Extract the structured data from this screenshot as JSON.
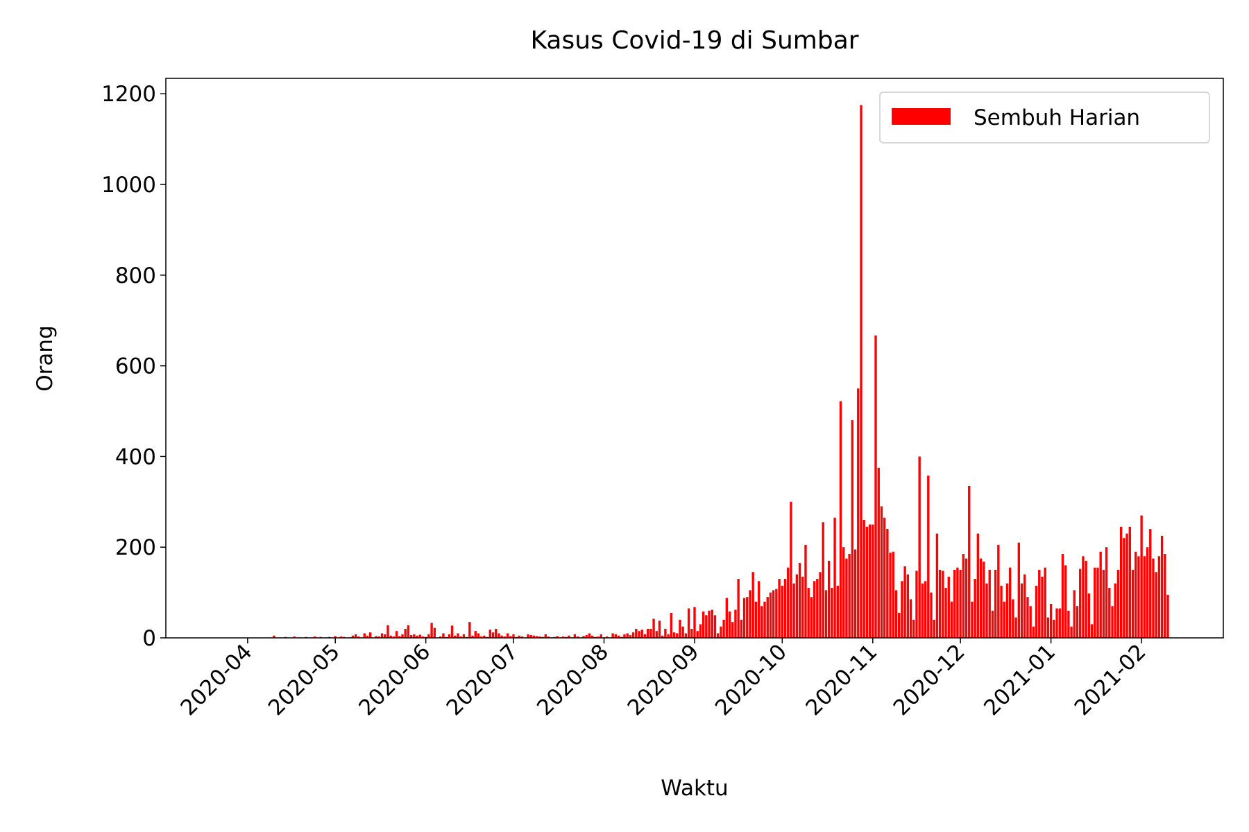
{
  "chart_data": {
    "type": "bar",
    "title": "Kasus Covid-19 di Sumbar",
    "xlabel": "Waktu",
    "ylabel": "Orang",
    "series": [
      {
        "name": "Sembuh Harian",
        "color": "#ff0000",
        "x": [
          40,
          41,
          42,
          43,
          44,
          45,
          46,
          47,
          48,
          49,
          50,
          51,
          52,
          53,
          54,
          55,
          56,
          57,
          58,
          59,
          60,
          61,
          62,
          63,
          64,
          65,
          66,
          67,
          68,
          69,
          70,
          71,
          72,
          73,
          74,
          75,
          76,
          77,
          78,
          79,
          80,
          81,
          82,
          83,
          84,
          85,
          86,
          87,
          88,
          89,
          90,
          91,
          92,
          93,
          94,
          95,
          96,
          97,
          98,
          99,
          100,
          101,
          102,
          103,
          104,
          105,
          106,
          107,
          108,
          109,
          110,
          111,
          112,
          113,
          114,
          115,
          116,
          117,
          118,
          119,
          120,
          121,
          122,
          123,
          124,
          125,
          126,
          127,
          128,
          129,
          130,
          131,
          132,
          133,
          134,
          135,
          136,
          137,
          138,
          139,
          140,
          141,
          142,
          143,
          144,
          145,
          146,
          147,
          148,
          149,
          150,
          151,
          152,
          153,
          154,
          155,
          156,
          157,
          158,
          159,
          160,
          161,
          162,
          163,
          164,
          165,
          166,
          167,
          168,
          169,
          170,
          171,
          172,
          173,
          174,
          175,
          176,
          177,
          178,
          179,
          180,
          181,
          182,
          183,
          184,
          185,
          186,
          187,
          188,
          189,
          190,
          191,
          192,
          193,
          194,
          195,
          196,
          197,
          198,
          199,
          200,
          201,
          202,
          203,
          204,
          205,
          206,
          207,
          208,
          209,
          210,
          211,
          212,
          213,
          214,
          215,
          216,
          217,
          218,
          219,
          220,
          221,
          222,
          223,
          224,
          225,
          226,
          227,
          228,
          229,
          230,
          231,
          232,
          233,
          234,
          235,
          236,
          237,
          238,
          239,
          240,
          241,
          242,
          243,
          244,
          245,
          246,
          247,
          248,
          249,
          250,
          251,
          252,
          253,
          254,
          255,
          256,
          257,
          258,
          259,
          260,
          261,
          262,
          263,
          264,
          265,
          266,
          267,
          268,
          269,
          270,
          271,
          272,
          273,
          274,
          275,
          276,
          277,
          278,
          279,
          280,
          281,
          282,
          283,
          284,
          285,
          286,
          287,
          288,
          289,
          290,
          291,
          292,
          293,
          294,
          295,
          296,
          297,
          298,
          299,
          300,
          301,
          302,
          303,
          304,
          305,
          306,
          307,
          308,
          309,
          310,
          311,
          312,
          313,
          314,
          315,
          316,
          317,
          318,
          319,
          320,
          321,
          322,
          323,
          324,
          325,
          326,
          327,
          328,
          329,
          330,
          331,
          332,
          333,
          334,
          335,
          336,
          337,
          338,
          339,
          340,
          341,
          342,
          343,
          344,
          345,
          346
        ],
        "values": [
          5,
          0,
          1,
          0,
          2,
          0,
          0,
          3,
          0,
          1,
          0,
          2,
          0,
          1,
          3,
          0,
          2,
          0,
          1,
          2,
          0,
          4,
          0,
          3,
          2,
          0,
          1,
          5,
          8,
          3,
          0,
          10,
          5,
          12,
          0,
          4,
          3,
          10,
          8,
          28,
          5,
          3,
          15,
          4,
          8,
          20,
          28,
          6,
          8,
          5,
          7,
          3,
          2,
          8,
          33,
          22,
          0,
          3,
          10,
          2,
          8,
          27,
          5,
          10,
          3,
          8,
          2,
          35,
          5,
          15,
          10,
          3,
          5,
          2,
          18,
          12,
          20,
          10,
          5,
          3,
          10,
          4,
          8,
          2,
          5,
          3,
          0,
          8,
          6,
          5,
          4,
          3,
          2,
          8,
          3,
          1,
          2,
          4,
          1,
          3,
          2,
          5,
          1,
          8,
          3,
          0,
          4,
          6,
          10,
          5,
          2,
          3,
          8,
          1,
          3,
          0,
          10,
          8,
          5,
          2,
          8,
          10,
          6,
          12,
          20,
          15,
          18,
          8,
          20,
          20,
          42,
          15,
          38,
          5,
          20,
          8,
          55,
          12,
          10,
          40,
          25,
          10,
          65,
          20,
          68,
          15,
          30,
          58,
          50,
          60,
          62,
          50,
          10,
          25,
          40,
          88,
          58,
          35,
          62,
          130,
          40,
          88,
          90,
          105,
          145,
          80,
          125,
          70,
          80,
          90,
          100,
          105,
          108,
          130,
          115,
          130,
          155,
          300,
          120,
          140,
          165,
          135,
          205,
          110,
          90,
          125,
          130,
          145,
          255,
          105,
          170,
          110,
          265,
          115,
          522,
          200,
          175,
          185,
          480,
          195,
          550,
          1175,
          260,
          245,
          250,
          250,
          667,
          375,
          290,
          265,
          240,
          188,
          190,
          105,
          55,
          125,
          158,
          140,
          85,
          40,
          148,
          400,
          120,
          125,
          358,
          100,
          40,
          230,
          150,
          148,
          110,
          135,
          80,
          150,
          155,
          150,
          185,
          175,
          335,
          80,
          130,
          230,
          175,
          168,
          120,
          150,
          60,
          150,
          205,
          115,
          80,
          120,
          155,
          85,
          45,
          210,
          120,
          140,
          90,
          70,
          25,
          115,
          150,
          135,
          155,
          45,
          75,
          40,
          65,
          65,
          185,
          160,
          60,
          25,
          105,
          70,
          152,
          180,
          170,
          98,
          30,
          155,
          155,
          190,
          150,
          200,
          110,
          70,
          120,
          150,
          245,
          220,
          230,
          245,
          150,
          190,
          180,
          270,
          180,
          200,
          240,
          175,
          145,
          180,
          225,
          185,
          95
        ]
      }
    ],
    "xlim": [
      3,
      365
    ],
    "xticks": [
      {
        "value": 31,
        "label": "2020-04"
      },
      {
        "value": 61,
        "label": "2020-05"
      },
      {
        "value": 92,
        "label": "2020-06"
      },
      {
        "value": 122,
        "label": "2020-07"
      },
      {
        "value": 153,
        "label": "2020-08"
      },
      {
        "value": 184,
        "label": "2020-09"
      },
      {
        "value": 214,
        "label": "2020-10"
      },
      {
        "value": 245,
        "label": "2020-11"
      },
      {
        "value": 275,
        "label": "2020-12"
      },
      {
        "value": 306,
        "label": "2021-01"
      },
      {
        "value": 337,
        "label": "2021-02"
      }
    ],
    "ylim": [
      0,
      1234
    ],
    "yticks": [
      0,
      200,
      400,
      600,
      800,
      1000,
      1200
    ],
    "legend": "upper right"
  }
}
